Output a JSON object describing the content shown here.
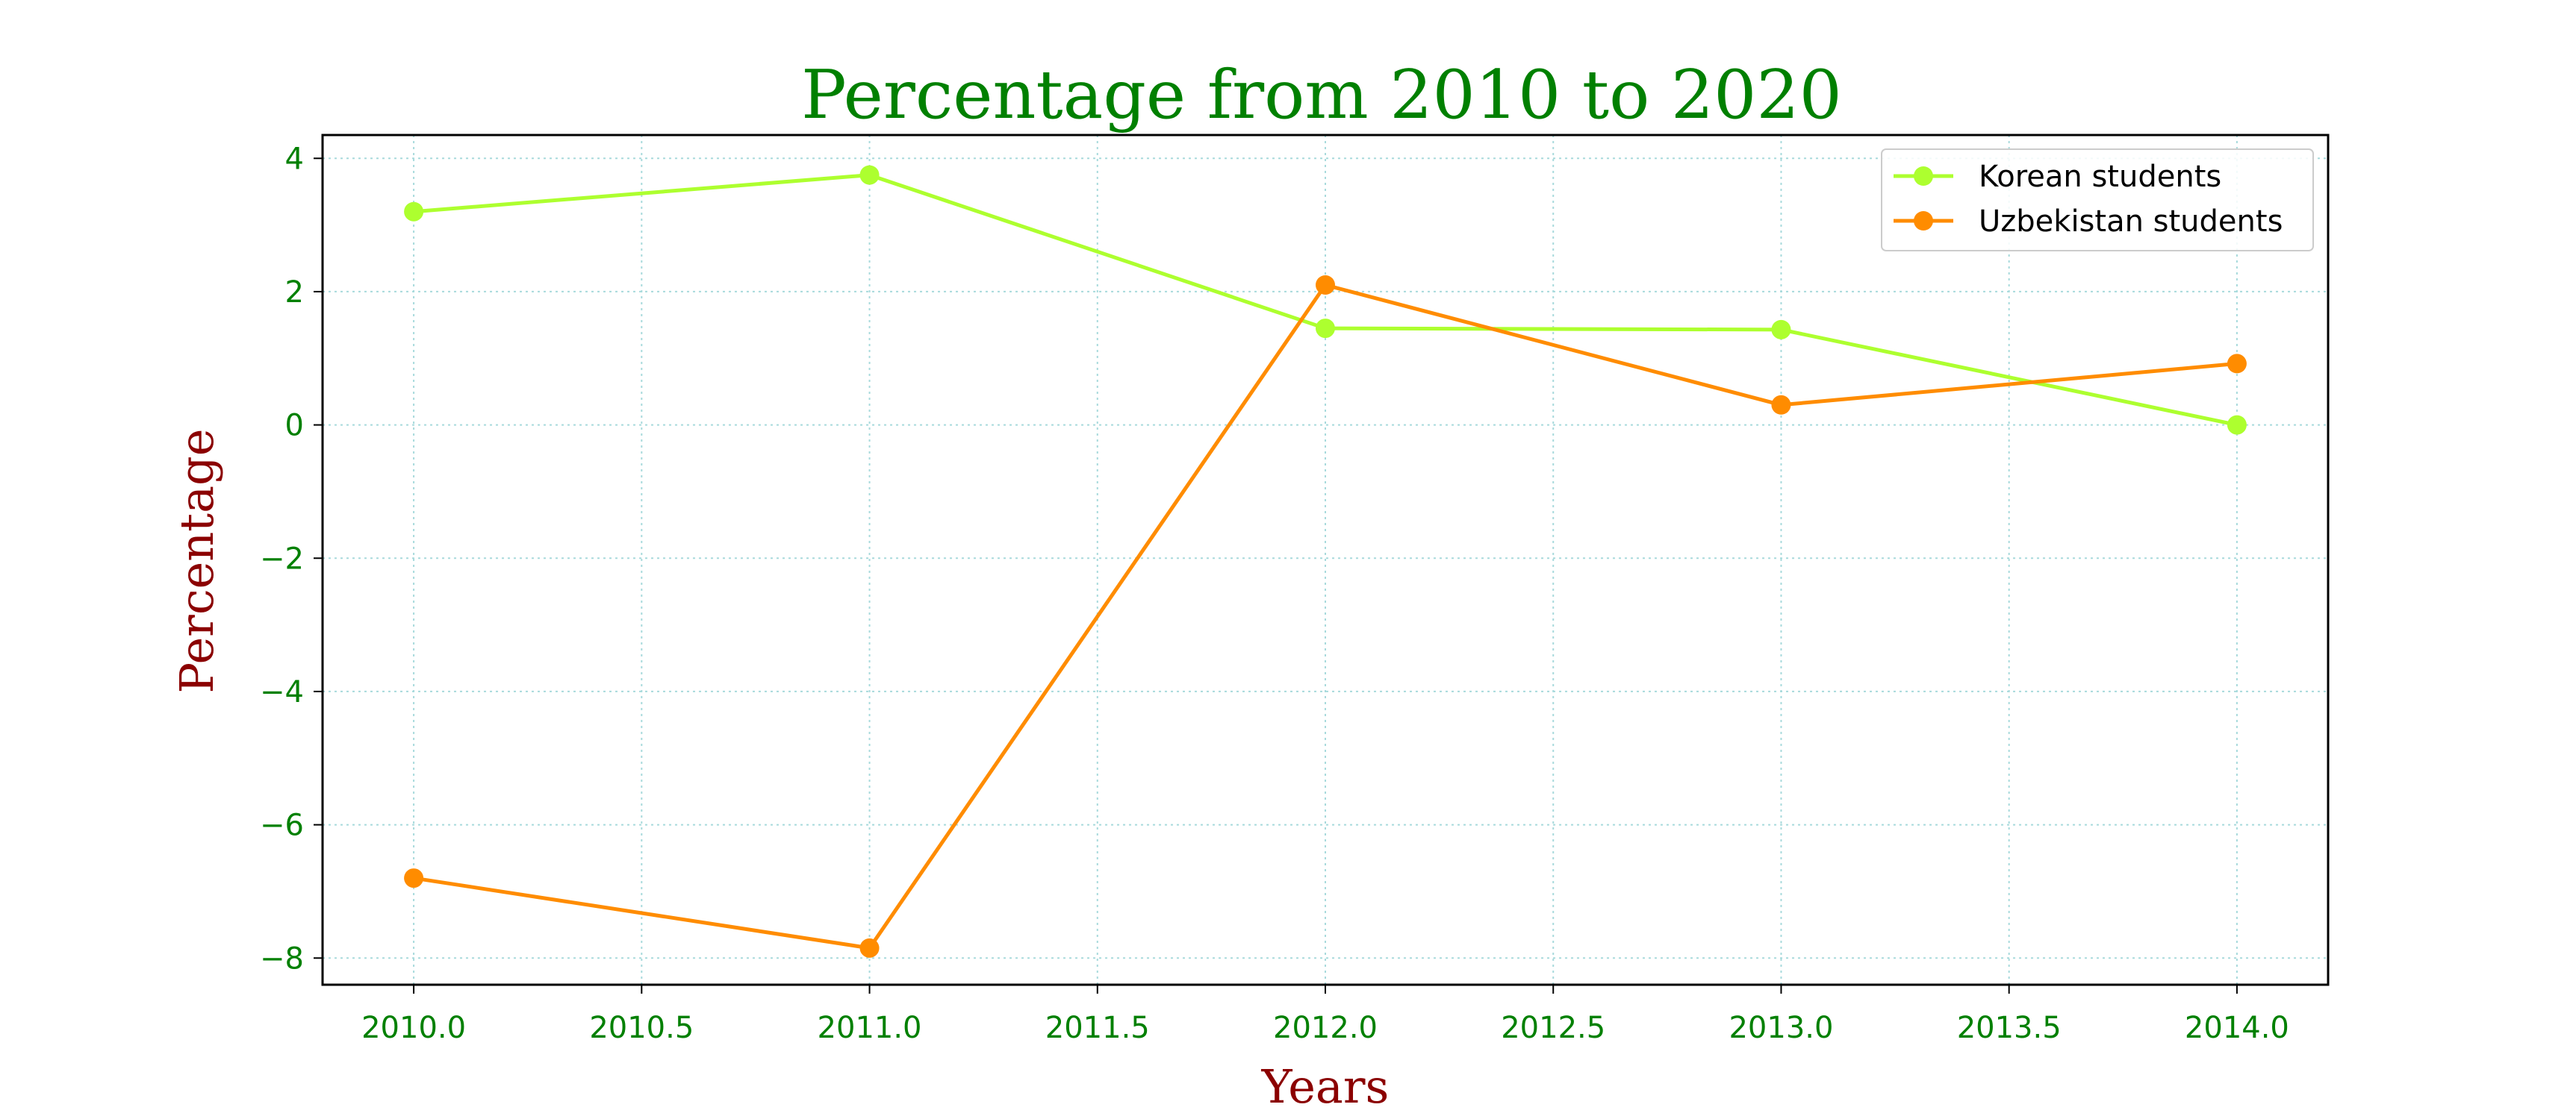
{
  "chart_data": {
    "type": "line",
    "title": "Percentage  from 2010 to 2020",
    "xlabel": "Years",
    "ylabel": "Percentage",
    "xlim": [
      2009.8,
      2014.2
    ],
    "ylim": [
      -8.4,
      4.35
    ],
    "x_ticks": [
      2010.0,
      2010.5,
      2011.0,
      2011.5,
      2012.0,
      2012.5,
      2013.0,
      2013.5,
      2014.0
    ],
    "x_tick_labels": [
      "2010.0",
      "2010.5",
      "2011.0",
      "2011.5",
      "2012.0",
      "2012.5",
      "2013.0",
      "2013.5",
      "2014.0"
    ],
    "y_ticks": [
      4,
      2,
      0,
      -2,
      -4,
      -6,
      -8
    ],
    "y_tick_labels": [
      "4",
      "2",
      "0",
      "−2",
      "−4",
      "−6",
      "−8"
    ],
    "x": [
      2010,
      2011,
      2012,
      2013,
      2014
    ],
    "series": [
      {
        "name": "Korean students",
        "color": "#adff2f",
        "values": [
          3.2,
          3.75,
          1.45,
          1.43,
          0.0
        ]
      },
      {
        "name": "Uzbekistan students",
        "color": "#ff8c00",
        "values": [
          -6.8,
          -7.85,
          2.1,
          0.3,
          0.92
        ]
      }
    ],
    "grid": true,
    "legend_position": "top-right",
    "colors": {
      "title": "#008000",
      "tick_labels": "#008000",
      "axis_labels": "#8b0000",
      "grid": "#a8dadc"
    }
  }
}
